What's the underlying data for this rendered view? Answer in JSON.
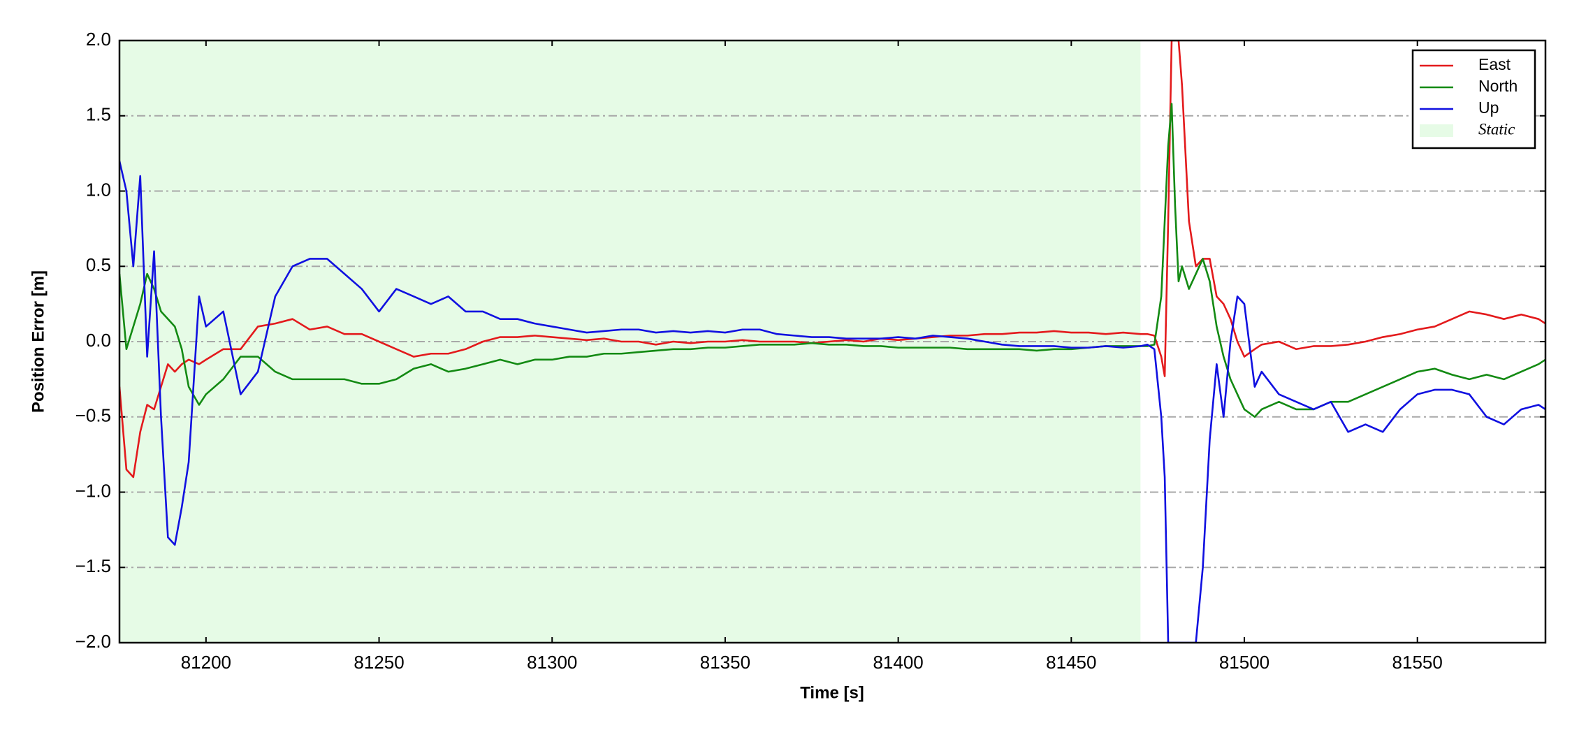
{
  "chart_data": {
    "type": "line",
    "xlabel": "Time [s]",
    "ylabel": "Position Error [m]",
    "xlim": [
      81175,
      81587
    ],
    "ylim": [
      -2,
      2
    ],
    "xticks": [
      81200,
      81250,
      81300,
      81350,
      81400,
      81450,
      81500,
      81550
    ],
    "yticks": [
      {
        "value": -2,
        "label": "−2.0"
      },
      {
        "value": -1.5,
        "label": "−1.5"
      },
      {
        "value": -1,
        "label": "−1.0"
      },
      {
        "value": -0.5,
        "label": "−0.5"
      },
      {
        "value": 0,
        "label": "0.0"
      },
      0.5,
      {
        "value": 1,
        "label": "1.0"
      },
      1.5,
      {
        "value": 2,
        "label": "2.0"
      }
    ],
    "grid": true,
    "legend": "upper right",
    "shaded_region": {
      "name": "Static",
      "xmin": 81175,
      "xmax": 81470,
      "color": "#e6fbe6"
    },
    "x": [
      81175,
      81177,
      81179,
      81181,
      81183,
      81185,
      81187,
      81189,
      81191,
      81193,
      81195,
      81198,
      81200,
      81205,
      81210,
      81215,
      81220,
      81225,
      81230,
      81235,
      81240,
      81245,
      81250,
      81255,
      81260,
      81265,
      81270,
      81275,
      81280,
      81285,
      81290,
      81295,
      81300,
      81305,
      81310,
      81315,
      81320,
      81325,
      81330,
      81335,
      81340,
      81345,
      81350,
      81355,
      81360,
      81365,
      81370,
      81375,
      81380,
      81385,
      81390,
      81395,
      81400,
      81405,
      81410,
      81415,
      81420,
      81425,
      81430,
      81435,
      81440,
      81445,
      81450,
      81455,
      81460,
      81465,
      81470,
      81472,
      81474,
      81476,
      81477,
      81478,
      81479,
      81480,
      81481,
      81482,
      81484,
      81486,
      81488,
      81490,
      81492,
      81494,
      81496,
      81498,
      81500,
      81503,
      81505,
      81510,
      81515,
      81520,
      81525,
      81530,
      81535,
      81540,
      81545,
      81550,
      81555,
      81560,
      81565,
      81570,
      81575,
      81580,
      81585,
      81587
    ],
    "series": [
      {
        "name": "East",
        "color": "#e31a1c",
        "values": [
          -0.3,
          -0.85,
          -0.9,
          -0.6,
          -0.42,
          -0.45,
          -0.3,
          -0.15,
          -0.2,
          -0.15,
          -0.12,
          -0.15,
          -0.12,
          -0.05,
          -0.05,
          0.1,
          0.12,
          0.15,
          0.08,
          0.1,
          0.05,
          0.05,
          0.0,
          -0.05,
          -0.1,
          -0.08,
          -0.08,
          -0.05,
          0.0,
          0.03,
          0.03,
          0.04,
          0.03,
          0.02,
          0.01,
          0.02,
          0.0,
          0.0,
          -0.02,
          0.0,
          -0.01,
          0.0,
          0.0,
          0.01,
          0.0,
          0.0,
          0.0,
          -0.01,
          0.0,
          0.01,
          0.0,
          0.02,
          0.01,
          0.02,
          0.03,
          0.04,
          0.04,
          0.05,
          0.05,
          0.06,
          0.06,
          0.07,
          0.06,
          0.06,
          0.05,
          0.06,
          0.05,
          0.05,
          0.04,
          -0.1,
          -0.23,
          0.8,
          2.0,
          2.0,
          2.0,
          1.7,
          0.8,
          0.5,
          0.55,
          0.55,
          0.3,
          0.25,
          0.15,
          0.0,
          -0.1,
          -0.05,
          -0.02,
          0.0,
          -0.05,
          -0.03,
          -0.03,
          -0.02,
          0.0,
          0.03,
          0.05,
          0.08,
          0.1,
          0.15,
          0.2,
          0.18,
          0.15,
          0.18,
          0.15,
          0.12
        ]
      },
      {
        "name": "North",
        "color": "#138a13",
        "values": [
          0.45,
          -0.05,
          0.1,
          0.25,
          0.45,
          0.35,
          0.2,
          0.15,
          0.1,
          -0.05,
          -0.3,
          -0.42,
          -0.35,
          -0.25,
          -0.1,
          -0.1,
          -0.2,
          -0.25,
          -0.25,
          -0.25,
          -0.25,
          -0.28,
          -0.28,
          -0.25,
          -0.18,
          -0.15,
          -0.2,
          -0.18,
          -0.15,
          -0.12,
          -0.15,
          -0.12,
          -0.12,
          -0.1,
          -0.1,
          -0.08,
          -0.08,
          -0.07,
          -0.06,
          -0.05,
          -0.05,
          -0.04,
          -0.04,
          -0.03,
          -0.02,
          -0.02,
          -0.02,
          -0.01,
          -0.02,
          -0.02,
          -0.03,
          -0.03,
          -0.04,
          -0.04,
          -0.04,
          -0.04,
          -0.05,
          -0.05,
          -0.05,
          -0.05,
          -0.06,
          -0.05,
          -0.05,
          -0.04,
          -0.03,
          -0.03,
          -0.03,
          -0.03,
          -0.02,
          0.3,
          0.8,
          1.3,
          1.58,
          0.9,
          0.4,
          0.5,
          0.35,
          0.45,
          0.55,
          0.4,
          0.1,
          -0.1,
          -0.25,
          -0.35,
          -0.45,
          -0.5,
          -0.45,
          -0.4,
          -0.45,
          -0.45,
          -0.4,
          -0.4,
          -0.35,
          -0.3,
          -0.25,
          -0.2,
          -0.18,
          -0.22,
          -0.25,
          -0.22,
          -0.25,
          -0.2,
          -0.15,
          -0.12
        ]
      },
      {
        "name": "Up",
        "color": "#1010e0",
        "values": [
          1.2,
          1.0,
          0.5,
          1.1,
          -0.1,
          0.6,
          -0.5,
          -1.3,
          -1.35,
          -1.1,
          -0.8,
          0.3,
          0.1,
          0.2,
          -0.35,
          -0.2,
          0.3,
          0.5,
          0.55,
          0.55,
          0.45,
          0.35,
          0.2,
          0.35,
          0.3,
          0.25,
          0.3,
          0.2,
          0.2,
          0.15,
          0.15,
          0.12,
          0.1,
          0.08,
          0.06,
          0.07,
          0.08,
          0.08,
          0.06,
          0.07,
          0.06,
          0.07,
          0.06,
          0.08,
          0.08,
          0.05,
          0.04,
          0.03,
          0.03,
          0.02,
          0.02,
          0.02,
          0.03,
          0.02,
          0.04,
          0.03,
          0.02,
          0.0,
          -0.02,
          -0.03,
          -0.03,
          -0.03,
          -0.04,
          -0.04,
          -0.03,
          -0.04,
          -0.03,
          -0.02,
          -0.05,
          -0.5,
          -0.9,
          -2.0,
          -2.0,
          -2.0,
          -2.0,
          -2.0,
          -2.0,
          -2.0,
          -1.5,
          -0.65,
          -0.15,
          -0.5,
          0.0,
          0.3,
          0.25,
          -0.3,
          -0.2,
          -0.35,
          -0.4,
          -0.45,
          -0.4,
          -0.6,
          -0.55,
          -0.6,
          -0.45,
          -0.35,
          -0.32,
          -0.32,
          -0.35,
          -0.5,
          -0.55,
          -0.45,
          -0.42,
          -0.45
        ]
      }
    ]
  }
}
